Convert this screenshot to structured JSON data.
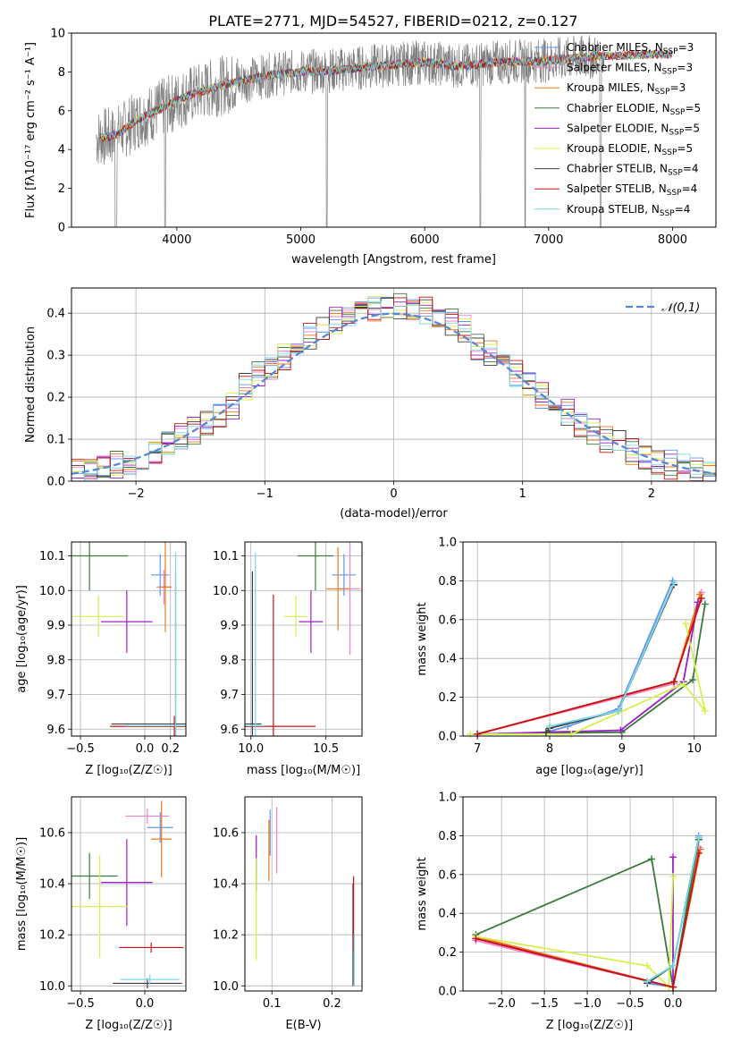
{
  "figure_title": "PLATE=2771, MJD=54527, FIBERID=0212, z=0.127",
  "models": [
    {
      "name": "Chabrier MILES",
      "nssp": "3",
      "color": "#6495ed"
    },
    {
      "name": "Salpeter MILES",
      "nssp": "3",
      "color": "#ee82c8"
    },
    {
      "name": "Kroupa MILES",
      "nssp": "3",
      "color": "#f07818"
    },
    {
      "name": "Chabrier ELODIE",
      "nssp": "5",
      "color": "#3a7a3a"
    },
    {
      "name": "Salpeter ELODIE",
      "nssp": "5",
      "color": "#9b20c8"
    },
    {
      "name": "Kroupa ELODIE",
      "nssp": "5",
      "color": "#d4f04a"
    },
    {
      "name": "Chabrier STELIB",
      "nssp": "4",
      "color": "#404040"
    },
    {
      "name": "Salpeter STELIB",
      "nssp": "4",
      "color": "#c81010"
    },
    {
      "name": "Kroupa STELIB",
      "nssp": "4",
      "color": "#78d8e8"
    }
  ],
  "chart_data": [
    {
      "id": "spectrum",
      "type": "line",
      "xlabel": "wavelength [Angstrom, rest frame]",
      "ylabel": "Flux [fλ10⁻¹⁷ erg cm⁻² s⁻¹ A⁻¹]",
      "xlim": [
        3150,
        8350
      ],
      "ylim": [
        0,
        10
      ],
      "xticks": [
        4000,
        5000,
        6000,
        7000,
        8000
      ],
      "yticks": [
        0,
        2,
        4,
        6,
        8,
        10
      ],
      "legend": "top-right",
      "continuum": {
        "x": [
          3350,
          3500,
          3700,
          3900,
          4100,
          4300,
          4500,
          4800,
          5000,
          5300,
          5600,
          6000,
          6300,
          6600,
          7000,
          7400,
          7800,
          8000
        ],
        "y": [
          4.6,
          4.7,
          5.6,
          6.2,
          6.8,
          7.2,
          7.5,
          7.9,
          8.0,
          8.1,
          8.3,
          8.5,
          8.3,
          8.5,
          8.6,
          8.8,
          8.9,
          8.9
        ]
      },
      "observed_range": [
        3350,
        7450
      ]
    },
    {
      "id": "residuals",
      "type": "line",
      "xlabel": "(data-model)/error",
      "ylabel": "Normed distribution",
      "xlim": [
        -2.5,
        2.5
      ],
      "ylim": [
        0,
        0.46
      ],
      "xticks": [
        -2,
        -1,
        0,
        1,
        2
      ],
      "yticks": [
        0,
        0.1,
        0.2,
        0.3,
        0.4
      ],
      "legend": "top-right",
      "gaussian_label": "𝒩(0,1)"
    },
    {
      "id": "age_vs_Z",
      "type": "scatter",
      "xlabel": "Z [log₁₀(Z/Z☉)]",
      "ylabel": "age  [log₁₀(age/yr)]",
      "xlim": [
        -0.57,
        0.32
      ],
      "ylim": [
        9.58,
        10.14
      ],
      "xticks": [
        -0.5,
        0,
        0.2
      ],
      "yticks": [
        9.6,
        9.7,
        9.8,
        9.9,
        10.0,
        10.1
      ],
      "points": [
        {
          "m": 0,
          "x": 0.12,
          "y": 10.045,
          "ex": 0.07,
          "ey": 0.06
        },
        {
          "m": 1,
          "x": 0.15,
          "y": 10.01,
          "ex": 0.06,
          "ey": 0.05
        },
        {
          "m": 2,
          "x": 0.16,
          "y": 10.01,
          "ex": 0.05,
          "ey": 0.13
        },
        {
          "m": 3,
          "x": -0.43,
          "y": 10.1,
          "ex": 0.3,
          "ey": 0.1
        },
        {
          "m": 4,
          "x": -0.14,
          "y": 9.91,
          "ex": 0.2,
          "ey": 0.09
        },
        {
          "m": 5,
          "x": -0.36,
          "y": 9.925,
          "ex": 0.2,
          "ey": 0.06
        },
        {
          "m": 6,
          "x": 0.24,
          "y": 9.615,
          "ex": 0.5,
          "ey": 0.44
        },
        {
          "m": 7,
          "x": 0.23,
          "y": 9.608,
          "ex": 0.5,
          "ey": 0.03
        },
        {
          "m": 8,
          "x": 0.24,
          "y": 9.61,
          "ex": 0.4,
          "ey": 0.5
        }
      ]
    },
    {
      "id": "age_vs_mass",
      "type": "scatter",
      "xlabel": "mass [log₁₀(M/M☉)]",
      "ylabel": "",
      "xlim": [
        9.96,
        10.74
      ],
      "ylim": [
        9.58,
        10.14
      ],
      "xticks": [
        10.0,
        10.5
      ],
      "yticks": [
        9.6,
        9.7,
        9.8,
        9.9,
        10.0,
        10.1
      ],
      "points": [
        {
          "m": 0,
          "x": 10.62,
          "y": 10.045,
          "ex": 0.08,
          "ey": 0.06
        },
        {
          "m": 1,
          "x": 10.66,
          "y": 10.005,
          "ex": 0.07,
          "ey": 0.19
        },
        {
          "m": 2,
          "x": 10.58,
          "y": 10.005,
          "ex": 0.08,
          "ey": 0.12
        },
        {
          "m": 3,
          "x": 10.43,
          "y": 10.1,
          "ex": 0.12,
          "ey": 0.1
        },
        {
          "m": 4,
          "x": 10.4,
          "y": 9.91,
          "ex": 0.08,
          "ey": 0.09
        },
        {
          "m": 5,
          "x": 10.3,
          "y": 9.925,
          "ex": 0.08,
          "ey": 0.06
        },
        {
          "m": 6,
          "x": 10.01,
          "y": 9.615,
          "ex": 0.06,
          "ey": 0.44
        },
        {
          "m": 7,
          "x": 10.15,
          "y": 9.608,
          "ex": 0.28,
          "ey": 0.38
        },
        {
          "m": 8,
          "x": 10.03,
          "y": 9.61,
          "ex": 0.06,
          "ey": 0.5
        }
      ]
    },
    {
      "id": "weight_vs_age",
      "type": "line",
      "xlabel": "age  [log₁₀(age/yr)]",
      "ylabel": "mass weight",
      "xlim": [
        6.8,
        10.3
      ],
      "ylim": [
        0,
        1
      ],
      "xticks": [
        7,
        8,
        9,
        10
      ],
      "yticks": [
        0,
        0.2,
        0.4,
        0.6,
        0.8,
        1.0
      ],
      "series": [
        {
          "m": 0,
          "x": [
            9.7,
            8.95,
            8.25,
            7.95
          ],
          "y": [
            0.8,
            0.14,
            0.05,
            0.02
          ]
        },
        {
          "m": 1,
          "x": [
            10.1,
            9.72,
            7.0
          ],
          "y": [
            0.74,
            0.27,
            0.01
          ]
        },
        {
          "m": 2,
          "x": [
            10.08,
            9.72,
            7.0
          ],
          "y": [
            0.73,
            0.28,
            0.01
          ]
        },
        {
          "m": 3,
          "x": [
            10.15,
            9.98,
            9.0,
            7.0
          ],
          "y": [
            0.68,
            0.29,
            0.02,
            0.01
          ]
        },
        {
          "m": 4,
          "x": [
            10.05,
            9.85,
            8.98,
            7.0
          ],
          "y": [
            0.69,
            0.28,
            0.03,
            0.01
          ]
        },
        {
          "m": 5,
          "x": [
            9.88,
            10.15,
            9.85,
            8.3,
            6.9
          ],
          "y": [
            0.58,
            0.13,
            0.27,
            0.01,
            0.01
          ]
        },
        {
          "m": 6,
          "x": [
            9.72,
            8.95,
            8.0,
            7.95
          ],
          "y": [
            0.78,
            0.13,
            0.04,
            0.02
          ]
        },
        {
          "m": 7,
          "x": [
            10.1,
            9.72,
            7.0
          ],
          "y": [
            0.71,
            0.28,
            0.01
          ]
        },
        {
          "m": 8,
          "x": [
            9.72,
            8.95,
            8.0
          ],
          "y": [
            0.79,
            0.13,
            0.05
          ]
        }
      ]
    },
    {
      "id": "mass_vs_Z",
      "type": "scatter",
      "xlabel": "Z [log₁₀(Z/Z☉)]",
      "ylabel": "mass [log₁₀(M/M☉)]",
      "xlim": [
        -0.57,
        0.32
      ],
      "ylim": [
        9.98,
        10.74
      ],
      "xticks": [
        -0.5,
        0
      ],
      "yticks": [
        10.0,
        10.2,
        10.4,
        10.6
      ],
      "points": [
        {
          "m": 0,
          "x": 0.12,
          "y": 10.62,
          "ex": 0.1,
          "ey": 0.06
        },
        {
          "m": 1,
          "x": 0.02,
          "y": 10.665,
          "ex": 0.17,
          "ey": 0.03
        },
        {
          "m": 2,
          "x": 0.13,
          "y": 10.575,
          "ex": 0.08,
          "ey": 0.15
        },
        {
          "m": 3,
          "x": -0.43,
          "y": 10.43,
          "ex": 0.22,
          "ey": 0.09
        },
        {
          "m": 4,
          "x": -0.14,
          "y": 10.405,
          "ex": 0.2,
          "ey": 0.17
        },
        {
          "m": 5,
          "x": -0.35,
          "y": 10.31,
          "ex": 0.22,
          "ey": 0.2
        },
        {
          "m": 6,
          "x": 0.02,
          "y": 10.01,
          "ex": 0.27,
          "ey": 0.02
        },
        {
          "m": 7,
          "x": 0.05,
          "y": 10.15,
          "ex": 0.25,
          "ey": 0.02
        },
        {
          "m": 8,
          "x": 0.04,
          "y": 10.025,
          "ex": 0.23,
          "ey": 0.02
        }
      ]
    },
    {
      "id": "mass_vs_EBV",
      "type": "scatter",
      "xlabel": "E(B-V)",
      "ylabel": "",
      "xlim": [
        0.055,
        0.25
      ],
      "ylim": [
        9.98,
        10.74
      ],
      "xticks": [
        0.1,
        0.2
      ],
      "yticks": [
        10.0,
        10.2,
        10.4,
        10.6
      ],
      "points": [
        {
          "m": 0,
          "x": 0.097,
          "y": 10.6,
          "ex": 0,
          "ey": 0.09
        },
        {
          "m": 1,
          "x": 0.108,
          "y": 10.57,
          "ex": 0,
          "ey": 0.13
        },
        {
          "m": 2,
          "x": 0.095,
          "y": 10.53,
          "ex": 0,
          "ey": 0.12
        },
        {
          "m": 3,
          "x": 0.074,
          "y": 10.43,
          "ex": 0,
          "ey": 0.06
        },
        {
          "m": 4,
          "x": 0.074,
          "y": 10.52,
          "ex": 0,
          "ey": 0.07
        },
        {
          "m": 5,
          "x": 0.074,
          "y": 10.3,
          "ex": 0,
          "ey": 0.2
        },
        {
          "m": 6,
          "x": 0.235,
          "y": 10.2,
          "ex": 0,
          "ey": 0.2
        },
        {
          "m": 7,
          "x": 0.236,
          "y": 10.28,
          "ex": 0,
          "ey": 0.15
        },
        {
          "m": 8,
          "x": 0.237,
          "y": 10.1,
          "ex": 0,
          "ey": 0.1
        }
      ]
    },
    {
      "id": "weight_vs_Z",
      "type": "line",
      "xlabel": "Z [log₁₀(Z/Z☉)]",
      "ylabel": "mass weight",
      "xlim": [
        -2.45,
        0.5
      ],
      "ylim": [
        0,
        1
      ],
      "xticks": [
        -2.0,
        -1.5,
        -1.0,
        -0.5,
        0.0
      ],
      "yticks": [
        0,
        0.2,
        0.4,
        0.6,
        0.8,
        1.0
      ],
      "series": [
        {
          "m": 0,
          "x": [
            0.3,
            0.0,
            -0.3
          ],
          "y": [
            0.8,
            0.02,
            0.04
          ]
        },
        {
          "m": 1,
          "x": [
            0.3,
            0.0,
            -2.3
          ],
          "y": [
            0.74,
            0.02,
            0.26
          ]
        },
        {
          "m": 2,
          "x": [
            0.32,
            0.0,
            -2.3
          ],
          "y": [
            0.73,
            0.02,
            0.28
          ]
        },
        {
          "m": 3,
          "x": [
            -2.3,
            -0.25,
            0.0,
            0.3
          ],
          "y": [
            0.29,
            0.68,
            0.02,
            0.78
          ]
        },
        {
          "m": 4,
          "x": [
            0.0,
            0.0,
            -2.3
          ],
          "y": [
            0.69,
            0.02,
            0.27
          ]
        },
        {
          "m": 5,
          "x": [
            0.0,
            -0.05,
            -0.3,
            -2.3
          ],
          "y": [
            0.59,
            0.02,
            0.13,
            0.28
          ]
        },
        {
          "m": 6,
          "x": [
            0.3,
            0.0,
            -0.3
          ],
          "y": [
            0.79,
            0.13,
            0.04
          ]
        },
        {
          "m": 7,
          "x": [
            0.3,
            0.0,
            -2.3
          ],
          "y": [
            0.71,
            0.02,
            0.27
          ]
        },
        {
          "m": 8,
          "x": [
            0.3,
            0.0,
            -0.3
          ],
          "y": [
            0.79,
            0.13,
            0.05
          ]
        }
      ]
    }
  ]
}
